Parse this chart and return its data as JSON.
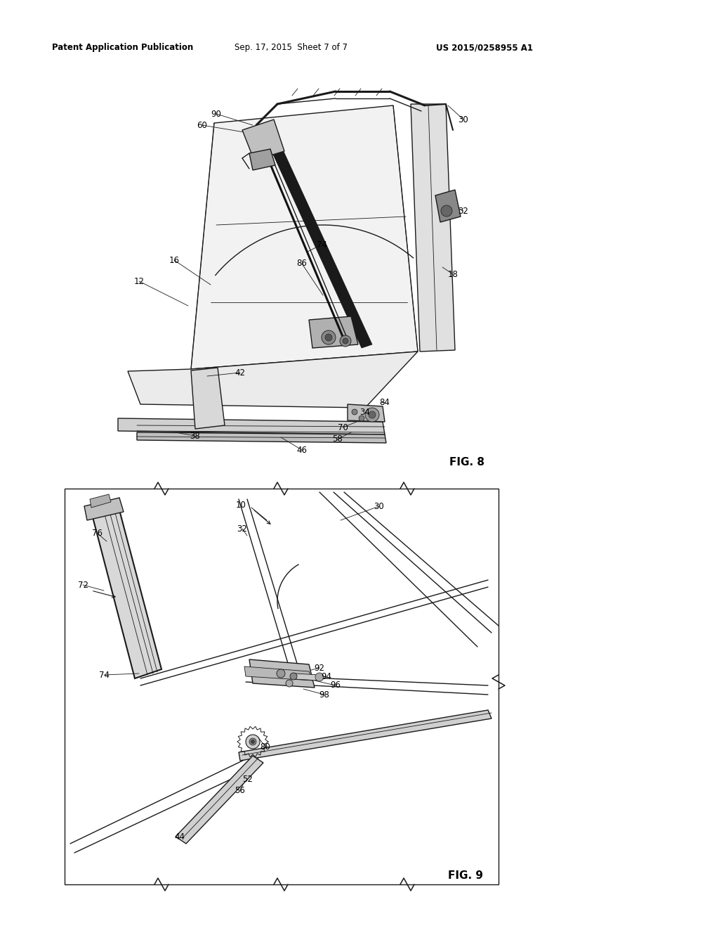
{
  "bg_color": "#ffffff",
  "page_width": 10.24,
  "page_height": 13.2,
  "header_text": "Patent Application Publication",
  "header_date": "Sep. 17, 2015  Sheet 7 of 7",
  "header_patent": "US 2015/0258955 A1",
  "fig8_label": "FIG. 8",
  "fig9_label": "FIG. 9",
  "lc": "#1a1a1a",
  "lc_dark": "#000000"
}
